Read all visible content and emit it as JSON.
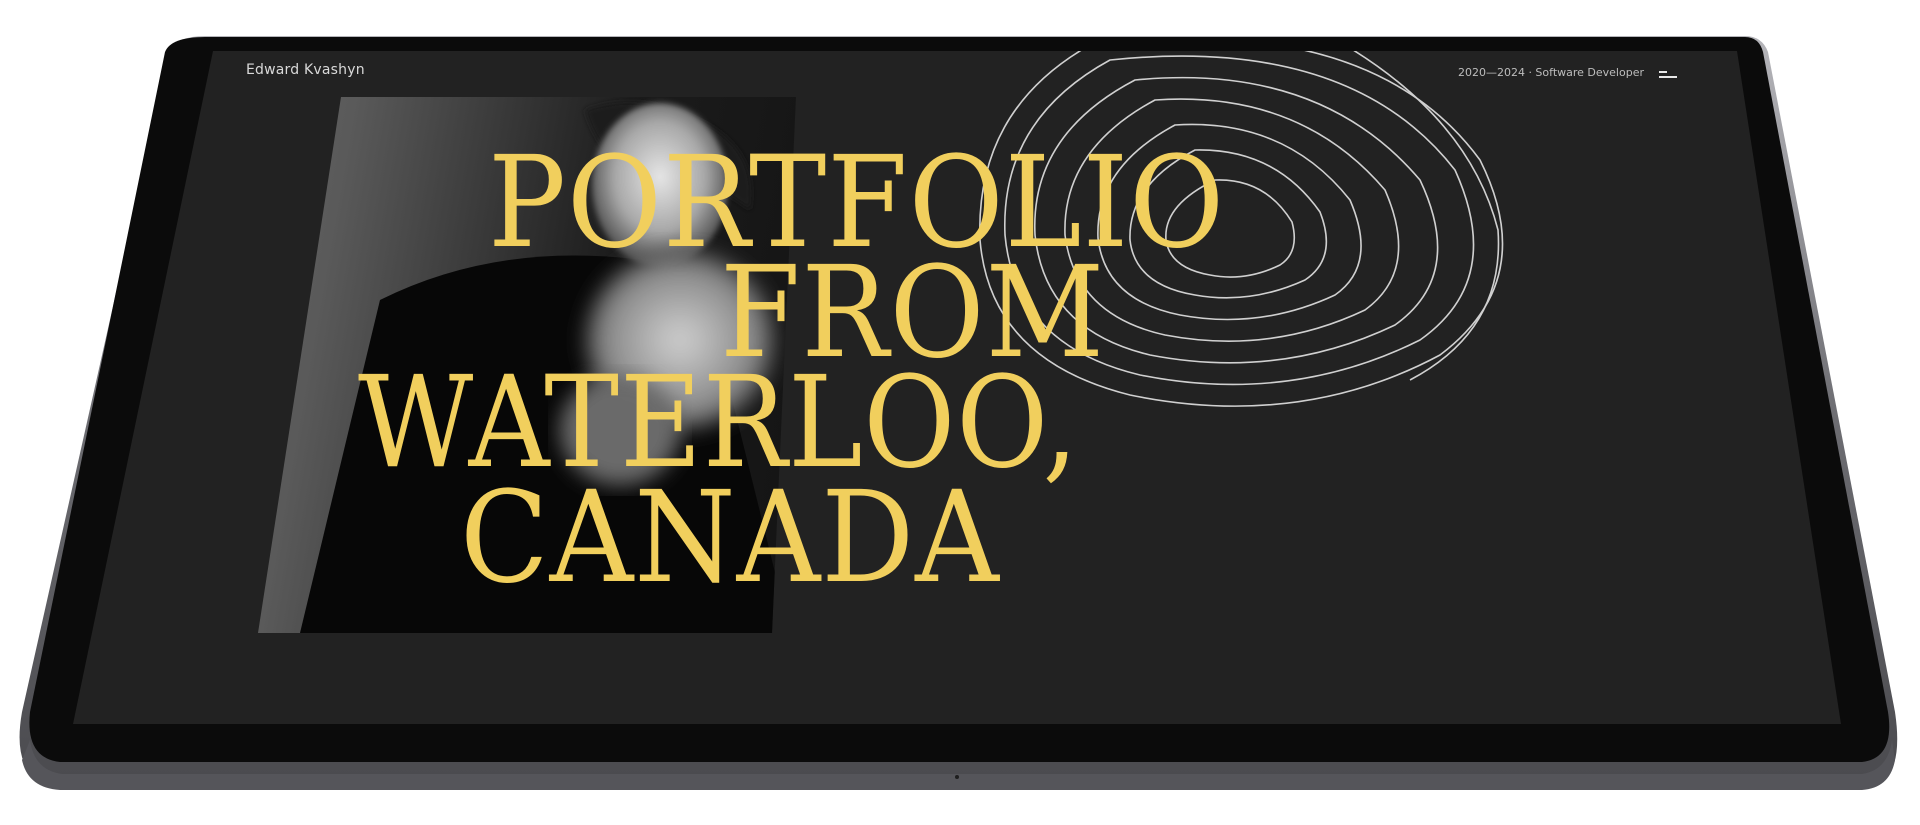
{
  "site": {
    "brand_name": "Edward Kvashyn",
    "meta_text": "2020—2024 · Software Developer"
  },
  "hero": {
    "lines": [
      "PORTFOLIO",
      "FROM",
      "WATERLOO,",
      "CANADA"
    ]
  },
  "icons": {
    "menu": "menu-icon"
  },
  "colors": {
    "accent": "#F1CF5D",
    "background": "#222222",
    "device_bezel": "#0a0a0a",
    "device_frame": "#8a8a90"
  }
}
